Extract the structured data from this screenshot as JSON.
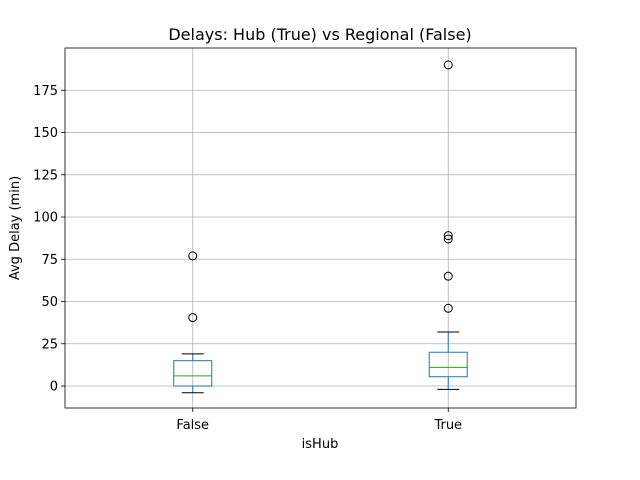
{
  "chart_data": {
    "type": "box",
    "title": "Delays: Hub (True) vs Regional (False)",
    "xlabel": "isHub",
    "ylabel": "Avg Delay (min)",
    "categories": [
      "False",
      "True"
    ],
    "ylim": [
      -13,
      200
    ],
    "yticks": [
      0,
      25,
      50,
      75,
      100,
      125,
      150,
      175
    ],
    "grid": true,
    "boxes": [
      {
        "category": "False",
        "whisker_low": -4,
        "q1": 0,
        "median": 6,
        "q3": 15,
        "whisker_high": 19,
        "outliers": [
          40.5,
          77
        ]
      },
      {
        "category": "True",
        "whisker_low": -2,
        "q1": 5.5,
        "median": 11,
        "q3": 20,
        "whisker_high": 32,
        "outliers": [
          46,
          65,
          87,
          89,
          190
        ]
      }
    ],
    "colors": {
      "box": "#1f77b4",
      "median": "#2ca02c",
      "whisker": "#000000",
      "grid": "#b0b0b0",
      "outlier": "#000000"
    }
  }
}
